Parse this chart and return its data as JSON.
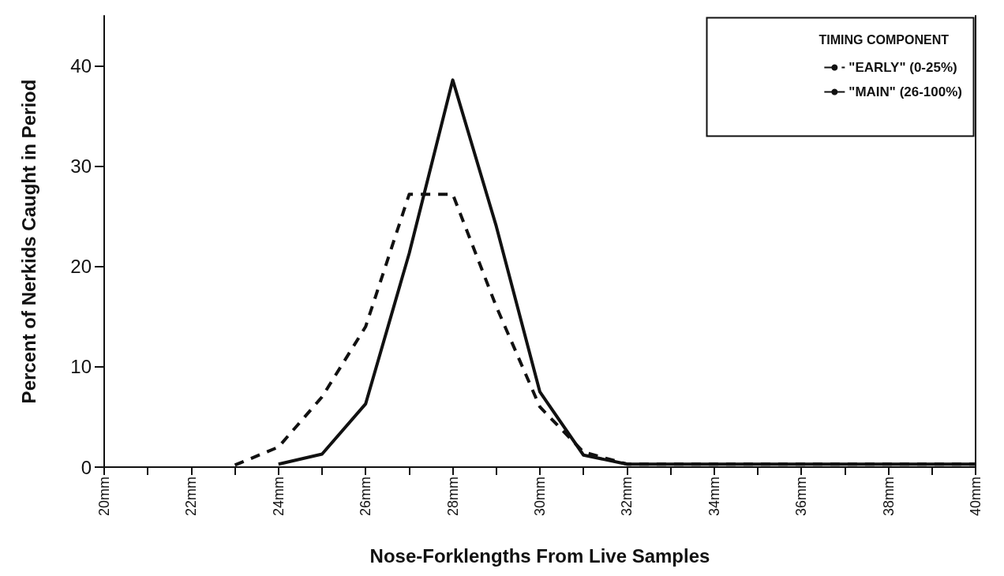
{
  "chart_data": {
    "type": "line",
    "xlabel": "Nose-Forklengths From Live Samples",
    "ylabel": "Percent of Nerkids Caught in Period",
    "legend_title": "TIMING COMPONENT",
    "legend": "top right",
    "grid": false,
    "marker": "none",
    "xlim": [
      20,
      40
    ],
    "xticks": [
      {
        "value": 20,
        "label": "20mm"
      },
      {
        "value": 21,
        "label": null
      },
      {
        "value": 22,
        "label": "22mm"
      },
      {
        "value": 23,
        "label": null
      },
      {
        "value": 24,
        "label": "24mm"
      },
      {
        "value": 25,
        "label": null
      },
      {
        "value": 26,
        "label": "26mm"
      },
      {
        "value": 27,
        "label": null
      },
      {
        "value": 28,
        "label": "28mm"
      },
      {
        "value": 29,
        "label": null
      },
      {
        "value": 30,
        "label": "30mm"
      },
      {
        "value": 31,
        "label": null
      },
      {
        "value": 32,
        "label": "32mm"
      },
      {
        "value": 33,
        "label": null
      },
      {
        "value": 34,
        "label": "34mm"
      },
      {
        "value": 35,
        "label": null
      },
      {
        "value": 36,
        "label": "36mm"
      },
      {
        "value": 37,
        "label": null
      },
      {
        "value": 38,
        "label": "38mm"
      },
      {
        "value": 39,
        "label": null
      },
      {
        "value": 40,
        "label": "40mm"
      }
    ],
    "ylim": [
      0,
      45
    ],
    "yticks": [
      0,
      10,
      20,
      30,
      40
    ],
    "series": [
      {
        "name": "\"EARLY\" (0-25%)",
        "color": "#111111",
        "line_style": "dashed",
        "x": [
          23,
          24,
          25,
          26,
          27,
          28,
          29,
          30,
          31,
          32,
          40
        ],
        "values": [
          0.2,
          2,
          7,
          14,
          27.2,
          27.2,
          16,
          6,
          1.5,
          0.3,
          0.3
        ]
      },
      {
        "name": "\"MAIN\" (26-100%)",
        "color": "#111111",
        "line_style": "solid",
        "x": [
          24,
          25,
          26,
          27,
          28,
          29,
          30,
          31,
          32,
          40
        ],
        "values": [
          0.3,
          1.3,
          6.3,
          21.3,
          38.6,
          24,
          7.5,
          1.2,
          0.3,
          0.3
        ]
      }
    ]
  }
}
